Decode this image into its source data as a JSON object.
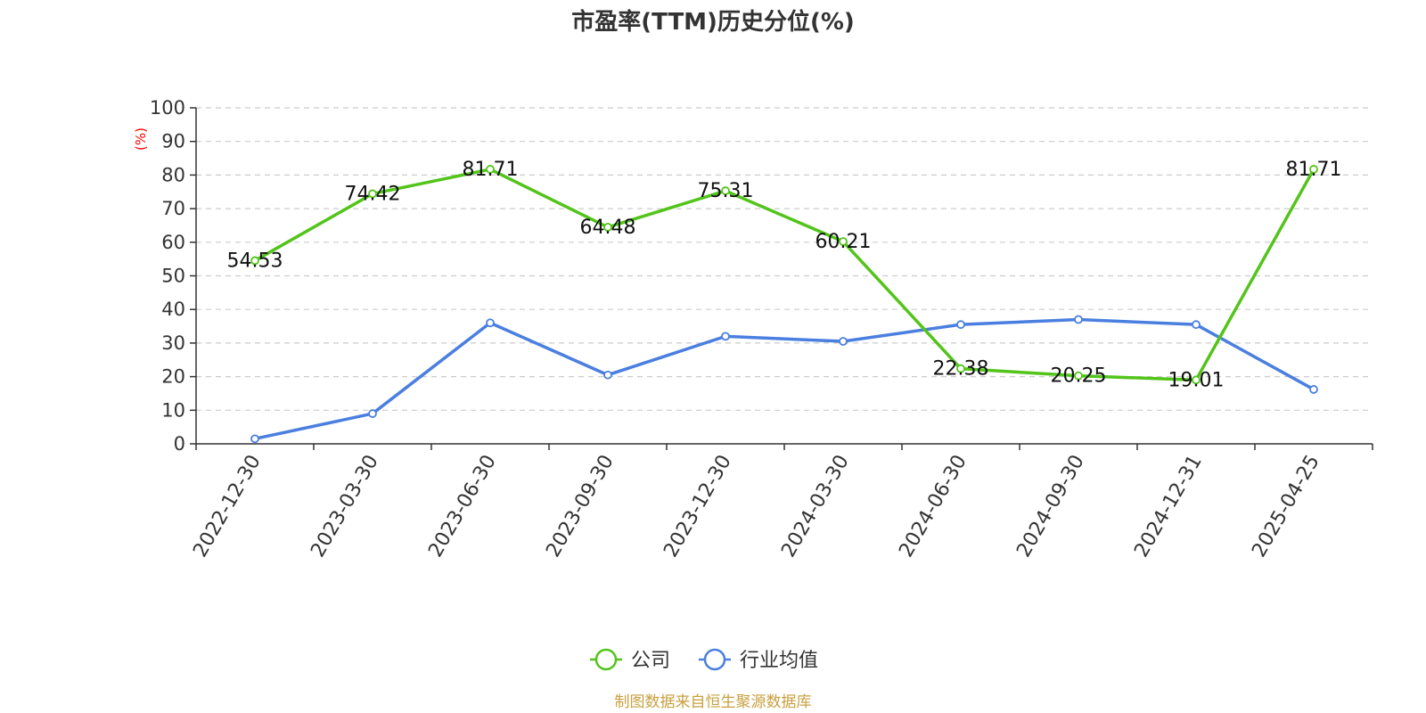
{
  "chart_data": {
    "type": "line",
    "title": "市盈率(TTM)历史分位(%)",
    "ylabel": "(%)",
    "ylim": [
      0,
      100
    ],
    "yticks": [
      0,
      10,
      20,
      30,
      40,
      50,
      60,
      70,
      80,
      90,
      100
    ],
    "grid": true,
    "legend_position": "bottom",
    "categories": [
      "2022-12-30",
      "2023-03-30",
      "2023-06-30",
      "2023-09-30",
      "2023-12-30",
      "2024-03-30",
      "2024-06-30",
      "2024-09-30",
      "2024-12-31",
      "2025-04-25"
    ],
    "series": [
      {
        "name": "公司",
        "color": "#52c41a",
        "show_labels": true,
        "values": [
          54.53,
          74.42,
          81.71,
          64.48,
          75.31,
          60.21,
          22.38,
          20.25,
          19.01,
          81.71
        ]
      },
      {
        "name": "行业均值",
        "color": "#4a7fe0",
        "show_labels": false,
        "values": [
          1.5,
          9,
          36,
          20.5,
          32,
          30.5,
          35.5,
          37,
          35.5,
          16.2
        ]
      }
    ],
    "source_note": "制图数据来自恒生聚源数据库"
  }
}
